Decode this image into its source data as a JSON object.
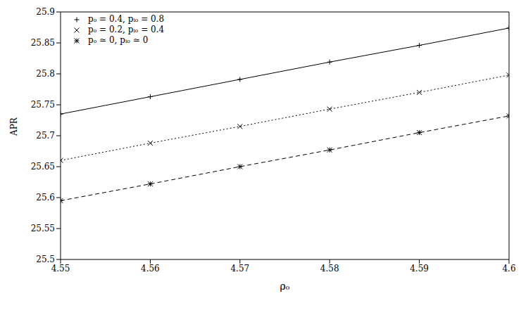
{
  "chart_data": {
    "type": "line",
    "x_label": "ρ₀",
    "y_label": "APR",
    "x": [
      4.55,
      4.56,
      4.57,
      4.58,
      4.59,
      4.6
    ],
    "xlim": [
      4.55,
      4.6
    ],
    "xticks": [
      4.55,
      4.56,
      4.57,
      4.58,
      4.59,
      4.6
    ],
    "ylim": [
      25.5,
      25.9
    ],
    "yticks": [
      25.5,
      25.55,
      25.6,
      25.65,
      25.7,
      25.75,
      25.8,
      25.85,
      25.9
    ],
    "grid": false,
    "legend": "upper left",
    "series": [
      {
        "name": "pₒ = 0.4, pᵢₒ = 0.8",
        "color": "#000000",
        "marker": "plus",
        "line_style": "solid",
        "values": [
          25.735,
          25.763,
          25.791,
          25.819,
          25.846,
          25.874
        ]
      },
      {
        "name": "pₒ = 0.2, pᵢₒ = 0.4",
        "color": "#000000",
        "marker": "x",
        "line_style": "dotted",
        "values": [
          25.66,
          25.688,
          25.715,
          25.743,
          25.77,
          25.798
        ]
      },
      {
        "name": "pₒ ≃ 0, pᵢₒ ≃ 0",
        "color": "#000000",
        "marker": "asterisk",
        "line_style": "dashed",
        "values": [
          25.595,
          25.622,
          25.65,
          25.677,
          25.705,
          25.732
        ]
      }
    ]
  }
}
